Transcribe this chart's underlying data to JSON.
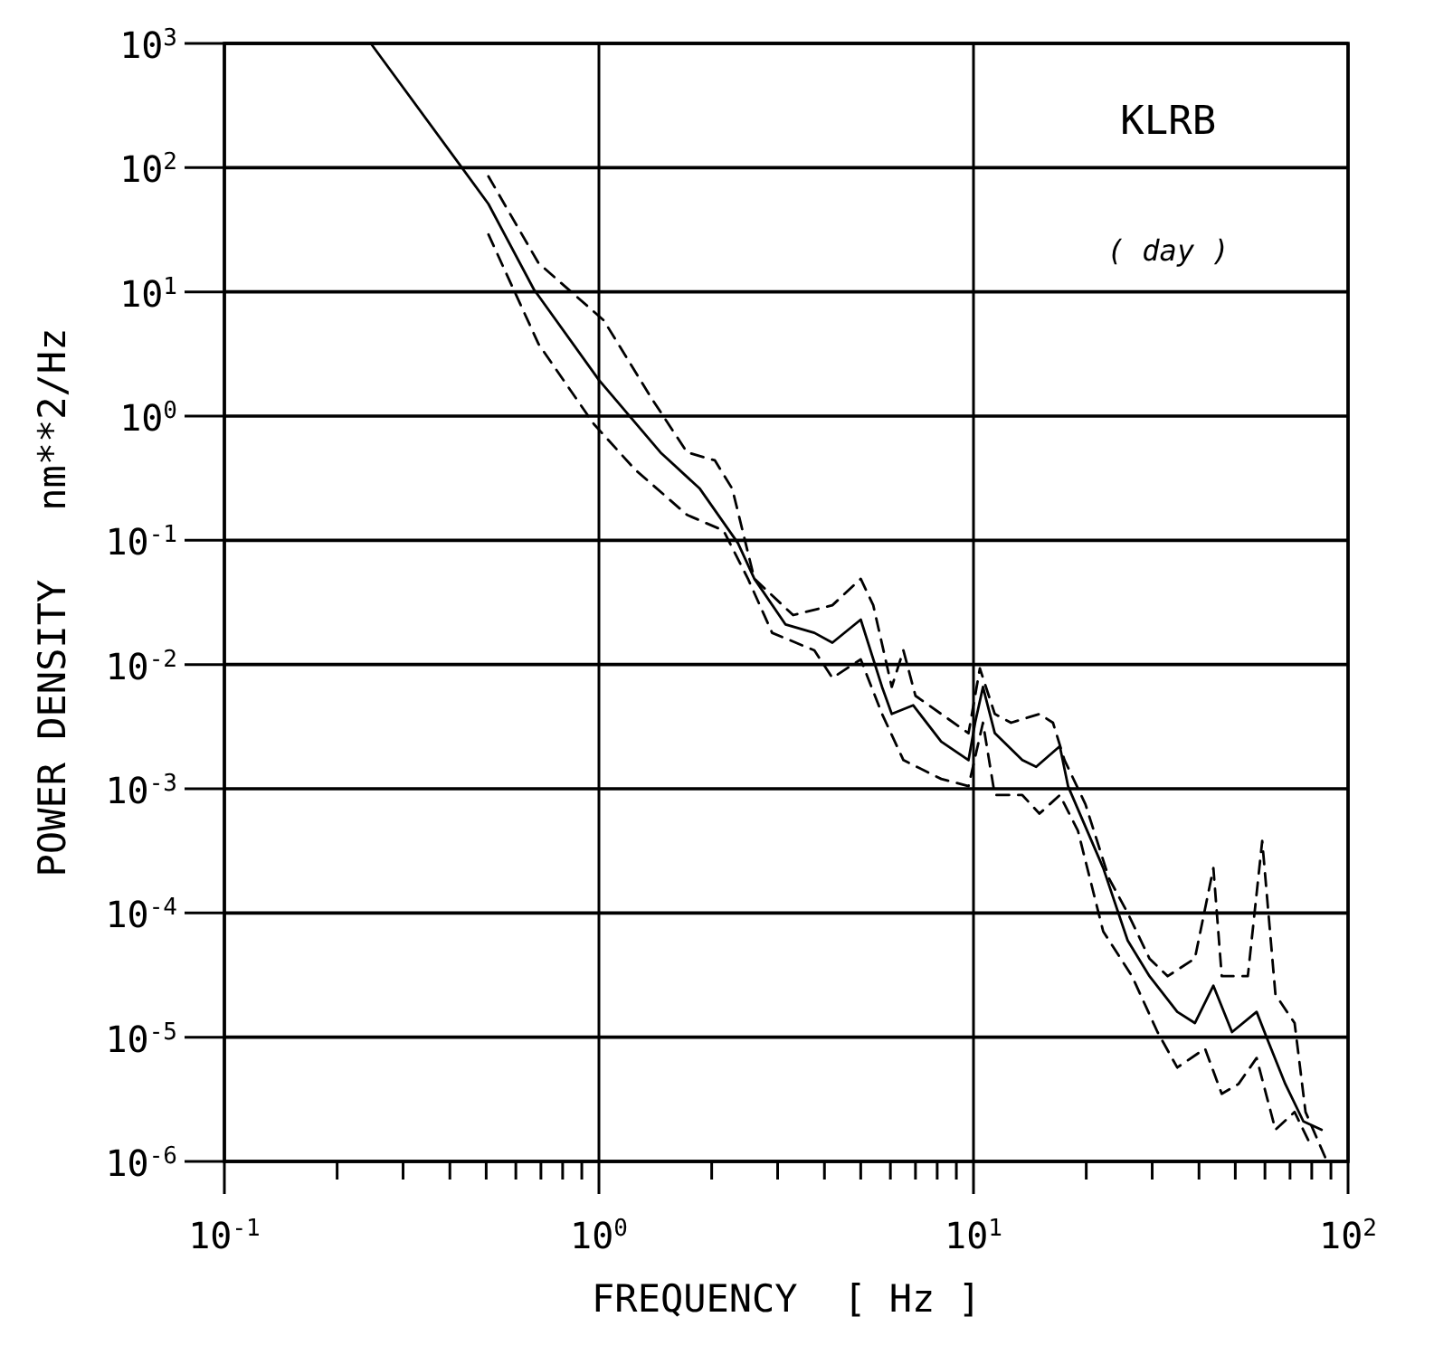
{
  "chart_data": {
    "type": "line",
    "xlabel": "FREQUENCY  [ Hz ]",
    "ylabel": "POWER DENSITY   nm**2/Hz",
    "annotations": [
      "KLRB",
      "( day )"
    ],
    "log": "xy",
    "grid": true,
    "xlim": [
      0.1,
      100
    ],
    "ylim": [
      1e-06,
      1000
    ],
    "xticks": [
      {
        "value": 0.1,
        "label": "10$^{-1}$"
      },
      {
        "value": 0.2,
        "label": null
      },
      {
        "value": 0.3,
        "label": null
      },
      {
        "value": 0.4,
        "label": null
      },
      {
        "value": 0.5,
        "label": null
      },
      {
        "value": 0.6,
        "label": null
      },
      {
        "value": 0.7,
        "label": null
      },
      {
        "value": 0.8,
        "label": null
      },
      {
        "value": 0.9,
        "label": null
      },
      {
        "value": 1,
        "label": "10$^{0}$"
      },
      {
        "value": 2,
        "label": null
      },
      {
        "value": 3,
        "label": null
      },
      {
        "value": 4,
        "label": null
      },
      {
        "value": 5,
        "label": null
      },
      {
        "value": 6,
        "label": null
      },
      {
        "value": 7,
        "label": null
      },
      {
        "value": 8,
        "label": null
      },
      {
        "value": 9,
        "label": null
      },
      {
        "value": 10,
        "label": "10$^{1}$"
      },
      {
        "value": 20,
        "label": null
      },
      {
        "value": 30,
        "label": null
      },
      {
        "value": 40,
        "label": null
      },
      {
        "value": 50,
        "label": null
      },
      {
        "value": 60,
        "label": null
      },
      {
        "value": 70,
        "label": null
      },
      {
        "value": 80,
        "label": null
      },
      {
        "value": 90,
        "label": null
      },
      {
        "value": 100,
        "label": "10$^{2}$"
      }
    ],
    "yticks": [
      {
        "value": 1e-06,
        "label": "10$^{-6}$"
      },
      {
        "value": 1e-05,
        "label": "10$^{-5}$"
      },
      {
        "value": 0.0001,
        "label": "10$^{-4}$"
      },
      {
        "value": 0.001,
        "label": "10$^{-3}$"
      },
      {
        "value": 0.01,
        "label": "10$^{-2}$"
      },
      {
        "value": 0.1,
        "label": "10$^{-1}$"
      },
      {
        "value": 1,
        "label": "10$^{0}$"
      },
      {
        "value": 10,
        "label": "10$^{1}$"
      },
      {
        "value": 100,
        "label": "10$^{2}$"
      },
      {
        "value": 1000,
        "label": "10$^{3}$"
      }
    ],
    "series": [
      {
        "color": "#000000",
        "line_style": "solid",
        "x": [
          0.246,
          0.507,
          0.67,
          1.0,
          1.46,
          1.86,
          2.35,
          2.6,
          3.15,
          3.76,
          4.2,
          5.0,
          5.7,
          6.05,
          6.9,
          8.2,
          9.7,
          10.1,
          10.6,
          11.4,
          13.5,
          14.7,
          17,
          17.9,
          22.2,
          25.8,
          29.5,
          35,
          39,
          43.7,
          49,
          57,
          61,
          68,
          76,
          85
        ],
        "values": [
          1000,
          51,
          10.5,
          1.95,
          0.51,
          0.26,
          0.095,
          0.049,
          0.021,
          0.018,
          0.015,
          0.023,
          0.0066,
          0.004,
          0.0047,
          0.0024,
          0.0017,
          0.0034,
          0.0066,
          0.0028,
          0.0017,
          0.0015,
          0.0022,
          0.00104,
          0.00023,
          6e-05,
          3.1e-05,
          1.6e-05,
          1.3e-05,
          2.6e-05,
          1.1e-05,
          1.6e-05,
          9.5e-06,
          4.2e-06,
          2.1e-06,
          1.8e-06
        ]
      },
      {
        "color": "#000000",
        "line_style": "dashed",
        "x": [
          0.507,
          0.69,
          1.03,
          1.38,
          1.72,
          2.04,
          2.27,
          2.6,
          3.3,
          4.2,
          5.0,
          5.4,
          6.05,
          6.5,
          7.0,
          8.2,
          9.7,
          10.4,
          11.4,
          12.6,
          15,
          16.3,
          17.5,
          19.9,
          23,
          25.8,
          29.5,
          33,
          39,
          43.7,
          46,
          54,
          59,
          64,
          72,
          77,
          87
        ],
        "values": [
          85,
          17,
          5.9,
          1.4,
          0.51,
          0.44,
          0.26,
          0.049,
          0.025,
          0.03,
          0.049,
          0.03,
          0.0066,
          0.013,
          0.0056,
          0.004,
          0.0028,
          0.0093,
          0.004,
          0.0034,
          0.004,
          0.0034,
          0.0017,
          0.00075,
          0.00019,
          0.0001,
          4.3e-05,
          3.1e-05,
          4.3e-05,
          0.00023,
          3.1e-05,
          3.1e-05,
          0.00038,
          2.2e-05,
          1.3e-05,
          2.5e-06,
          1.07e-06
        ]
      },
      {
        "color": "#000000",
        "line_style": "dashed",
        "x": [
          0.507,
          0.69,
          0.97,
          1.25,
          1.72,
          2.15,
          2.5,
          2.9,
          3.76,
          4.2,
          5.0,
          5.7,
          6.5,
          8.2,
          9.7,
          10.6,
          11.4,
          13.5,
          15,
          17,
          19,
          22.2,
          26.5,
          31,
          35,
          41.5,
          46,
          51,
          57,
          64,
          72,
          80
        ],
        "values": [
          29,
          3.8,
          0.86,
          0.37,
          0.16,
          0.12,
          0.049,
          0.018,
          0.013,
          0.0078,
          0.011,
          0.004,
          0.0017,
          0.0012,
          0.00105,
          0.0034,
          0.00089,
          0.00089,
          0.00063,
          0.00089,
          0.00046,
          7.1e-05,
          3.1e-05,
          1.1e-05,
          5.7e-06,
          8.1e-06,
          3.5e-06,
          4.2e-06,
          6.8e-06,
          1.8e-06,
          2.5e-06,
          1.3e-06
        ]
      }
    ]
  }
}
